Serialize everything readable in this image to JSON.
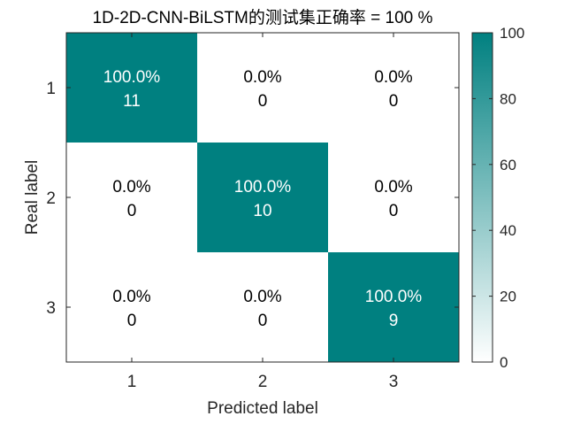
{
  "chart_data": {
    "type": "heatmap",
    "title": "1D-2D-CNN-BiLSTM的测试集正确率 = 100 %",
    "xlabel": "Predicted label",
    "ylabel": "Real label",
    "x_categories": [
      "1",
      "2",
      "3"
    ],
    "y_categories": [
      "1",
      "2",
      "3"
    ],
    "counts": [
      [
        11,
        0,
        0
      ],
      [
        0,
        10,
        0
      ],
      [
        0,
        0,
        9
      ]
    ],
    "percentages": [
      [
        100.0,
        0.0,
        0.0
      ],
      [
        0.0,
        100.0,
        0.0
      ],
      [
        0.0,
        0.0,
        100.0
      ]
    ],
    "cell_labels": [
      [
        {
          "pct": "100.0%",
          "count": "11"
        },
        {
          "pct": "0.0%",
          "count": "0"
        },
        {
          "pct": "0.0%",
          "count": "0"
        }
      ],
      [
        {
          "pct": "0.0%",
          "count": "0"
        },
        {
          "pct": "100.0%",
          "count": "10"
        },
        {
          "pct": "0.0%",
          "count": "0"
        }
      ],
      [
        {
          "pct": "0.0%",
          "count": "0"
        },
        {
          "pct": "0.0%",
          "count": "0"
        },
        {
          "pct": "100.0%",
          "count": "9"
        }
      ]
    ],
    "colorbar": {
      "range": [
        0,
        100
      ],
      "ticks": [
        "0",
        "20",
        "40",
        "60",
        "80",
        "100"
      ],
      "color_low": "#ffffff",
      "color_high": "#008080"
    },
    "grid": false
  }
}
